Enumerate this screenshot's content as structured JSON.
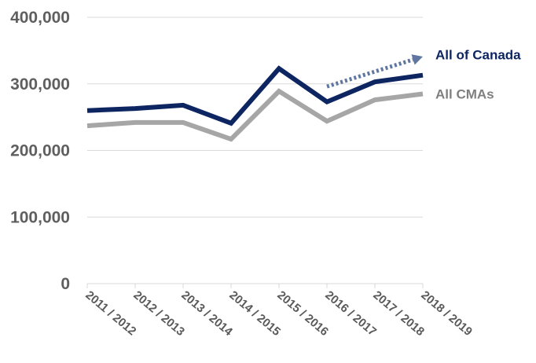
{
  "chart_data": {
    "type": "line",
    "categories": [
      "2011 / 2012",
      "2012 / 2013",
      "2013 / 2014",
      "2014 / 2015",
      "2015 / 2016",
      "2016 / 2017",
      "2017 / 2018",
      "2018 / 2019"
    ],
    "y_ticks": [
      "0",
      "100,000",
      "200,000",
      "300,000",
      "400,000"
    ],
    "ylim": [
      0,
      400000
    ],
    "grid": true,
    "series": [
      {
        "name": "All of Canada",
        "color": "#0d2561",
        "values": [
          260000,
          263000,
          268000,
          241000,
          323000,
          273000,
          303000,
          313000
        ]
      },
      {
        "name": "All CMAs",
        "color": "#a6a6a6",
        "values": [
          237000,
          242000,
          242000,
          217000,
          289000,
          244000,
          276000,
          285000
        ]
      }
    ],
    "annotations": [
      {
        "type": "dotted-arrow",
        "color": "#5e76a0",
        "from": {
          "x": "2016 / 2017",
          "y": 296000
        },
        "to": {
          "x": "2018 / 2019",
          "y": 341000
        }
      }
    ]
  }
}
